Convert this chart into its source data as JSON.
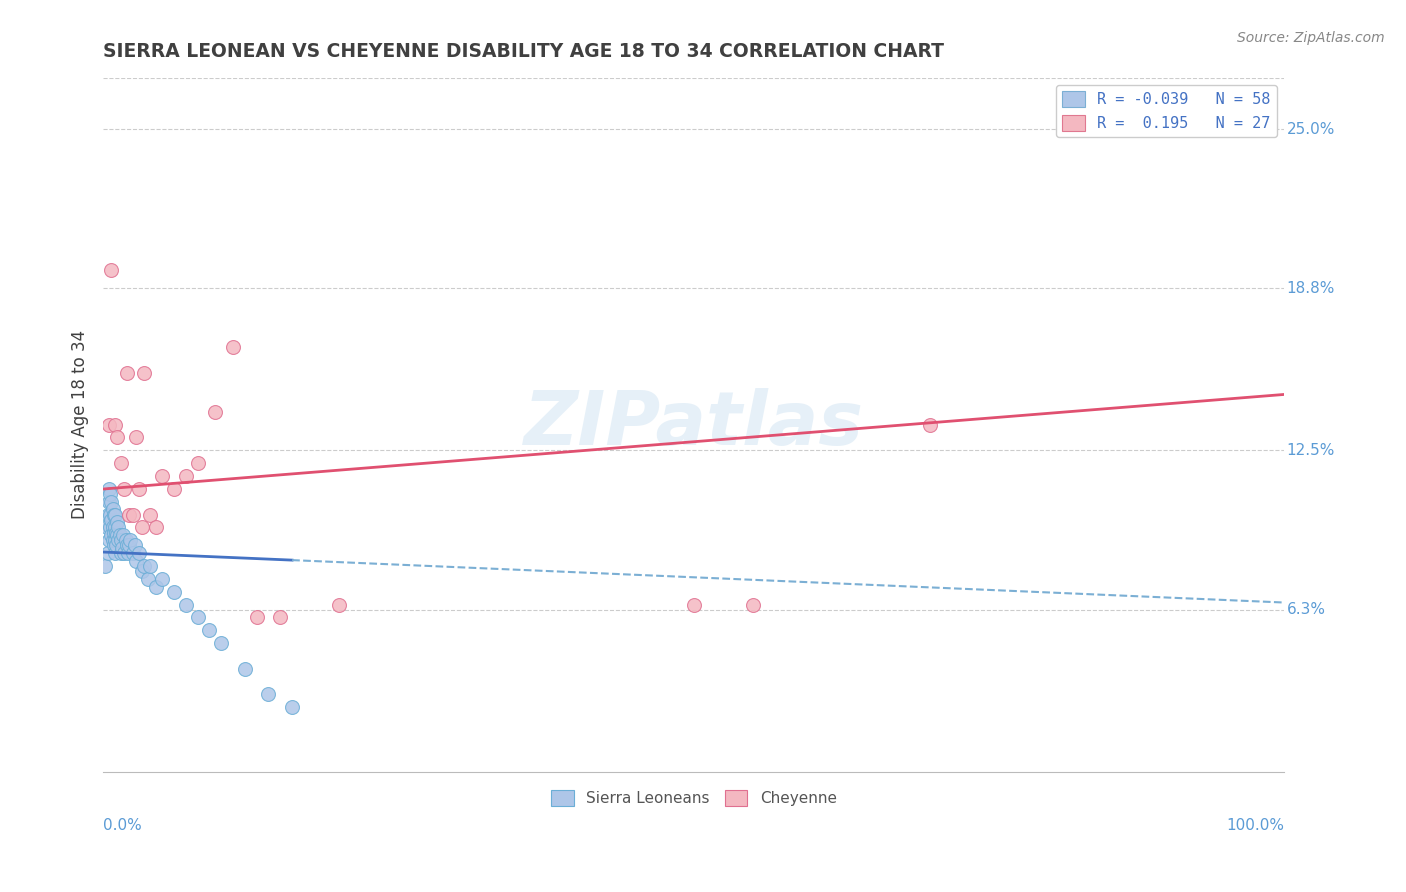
{
  "title": "SIERRA LEONEAN VS CHEYENNE DISABILITY AGE 18 TO 34 CORRELATION CHART",
  "source_text": "Source: ZipAtlas.com",
  "ylabel": "Disability Age 18 to 34",
  "xlabel": "",
  "xlim": [
    0.0,
    1.0
  ],
  "ylim": [
    0.0,
    0.27
  ],
  "yticks": [
    0.063,
    0.125,
    0.188,
    0.25
  ],
  "ytick_labels": [
    "6.3%",
    "12.5%",
    "18.8%",
    "25.0%"
  ],
  "xticks": [
    0.0,
    1.0
  ],
  "xtick_labels": [
    "0.0%",
    "100.0%"
  ],
  "legend_entries": [
    {
      "label": "R = -0.039   N = 58",
      "facecolor": "#aec6e8",
      "edgecolor": "#7bafd4"
    },
    {
      "label": "R =  0.195   N = 27",
      "facecolor": "#f4b8c1",
      "edgecolor": "#e07890"
    }
  ],
  "legend_bottom": [
    "Sierra Leoneans",
    "Cheyenne"
  ],
  "watermark": "ZIPatlas",
  "background_color": "#ffffff",
  "sierra_x": [
    0.002,
    0.003,
    0.004,
    0.004,
    0.005,
    0.005,
    0.005,
    0.006,
    0.006,
    0.006,
    0.007,
    0.007,
    0.007,
    0.008,
    0.008,
    0.008,
    0.009,
    0.009,
    0.009,
    0.01,
    0.01,
    0.01,
    0.01,
    0.011,
    0.011,
    0.012,
    0.012,
    0.013,
    0.013,
    0.014,
    0.015,
    0.015,
    0.016,
    0.017,
    0.018,
    0.019,
    0.02,
    0.021,
    0.022,
    0.023,
    0.025,
    0.027,
    0.028,
    0.03,
    0.033,
    0.035,
    0.038,
    0.04,
    0.045,
    0.05,
    0.06,
    0.07,
    0.08,
    0.09,
    0.1,
    0.12,
    0.14,
    0.16
  ],
  "sierra_y": [
    0.08,
    0.095,
    0.085,
    0.1,
    0.09,
    0.105,
    0.11,
    0.095,
    0.1,
    0.108,
    0.092,
    0.098,
    0.105,
    0.09,
    0.095,
    0.102,
    0.088,
    0.093,
    0.1,
    0.085,
    0.09,
    0.095,
    0.1,
    0.088,
    0.093,
    0.092,
    0.097,
    0.09,
    0.095,
    0.092,
    0.085,
    0.09,
    0.087,
    0.092,
    0.085,
    0.09,
    0.088,
    0.085,
    0.088,
    0.09,
    0.085,
    0.088,
    0.082,
    0.085,
    0.078,
    0.08,
    0.075,
    0.08,
    0.072,
    0.075,
    0.07,
    0.065,
    0.06,
    0.055,
    0.05,
    0.04,
    0.03,
    0.025
  ],
  "cheyenne_x": [
    0.005,
    0.007,
    0.01,
    0.012,
    0.015,
    0.018,
    0.02,
    0.022,
    0.025,
    0.028,
    0.03,
    0.033,
    0.035,
    0.04,
    0.045,
    0.05,
    0.06,
    0.07,
    0.08,
    0.095,
    0.11,
    0.13,
    0.15,
    0.2,
    0.5,
    0.55,
    0.7
  ],
  "cheyenne_y": [
    0.135,
    0.195,
    0.135,
    0.13,
    0.12,
    0.11,
    0.155,
    0.1,
    0.1,
    0.13,
    0.11,
    0.095,
    0.155,
    0.1,
    0.095,
    0.115,
    0.11,
    0.115,
    0.12,
    0.14,
    0.165,
    0.06,
    0.06,
    0.065,
    0.065,
    0.065,
    0.135
  ],
  "sierra_R": -0.039,
  "cheyenne_R": 0.195,
  "grid_color": "#cccccc",
  "sierra_dot_color": "#aec6e8",
  "sierra_dot_edge": "#6baed6",
  "cheyenne_dot_color": "#f4b8c1",
  "cheyenne_dot_edge": "#e07090",
  "sierra_line_color_solid": "#4472c4",
  "sierra_line_color_dash": "#7bafd4",
  "cheyenne_line_color": "#e05070",
  "title_color": "#404040",
  "axis_label_color": "#404040",
  "tick_label_color": "#5b9bd5",
  "right_tick_color": "#5b9bd5"
}
